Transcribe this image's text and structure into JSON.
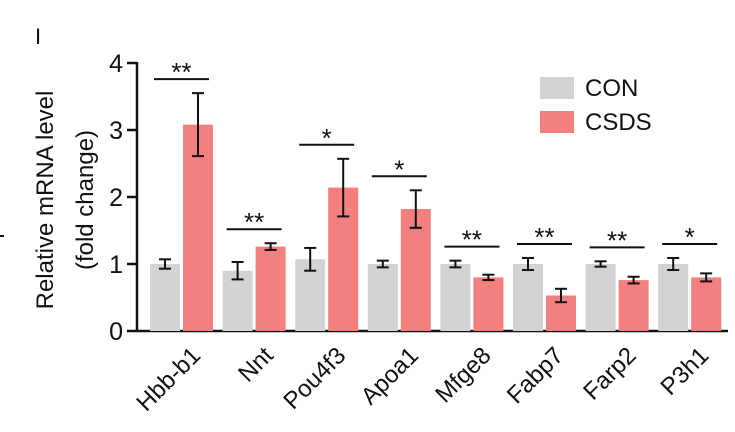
{
  "panel_mark": "I",
  "chart_data": {
    "type": "bar",
    "ylabel": "Relative mRNA level",
    "ylabel2": "(fold change)",
    "ylim": [
      0,
      4
    ],
    "yticks": [
      "0",
      "1",
      "2",
      "3",
      "4"
    ],
    "categories": [
      "Hbb-b1",
      "Nnt",
      "Pou4f3",
      "Apoa1",
      "Mfge8",
      "Fabp7",
      "Farp2",
      "P3h1"
    ],
    "series": [
      {
        "name": "CON",
        "color": "#d3d3d3",
        "values": [
          1.0,
          0.9,
          1.07,
          1.0,
          1.0,
          1.0,
          1.0,
          1.0
        ],
        "errors": [
          0.07,
          0.13,
          0.17,
          0.05,
          0.05,
          0.09,
          0.04,
          0.09
        ]
      },
      {
        "name": "CSDS",
        "color": "#f47f7f",
        "values": [
          3.08,
          1.26,
          2.14,
          1.82,
          0.8,
          0.53,
          0.76,
          0.8
        ],
        "errors": [
          0.47,
          0.05,
          0.43,
          0.28,
          0.04,
          0.1,
          0.05,
          0.06
        ]
      }
    ],
    "significance": [
      "**",
      "**",
      "*",
      "*",
      "**",
      "**",
      "**",
      "*"
    ],
    "legend_position": "top-right",
    "grid": false
  }
}
